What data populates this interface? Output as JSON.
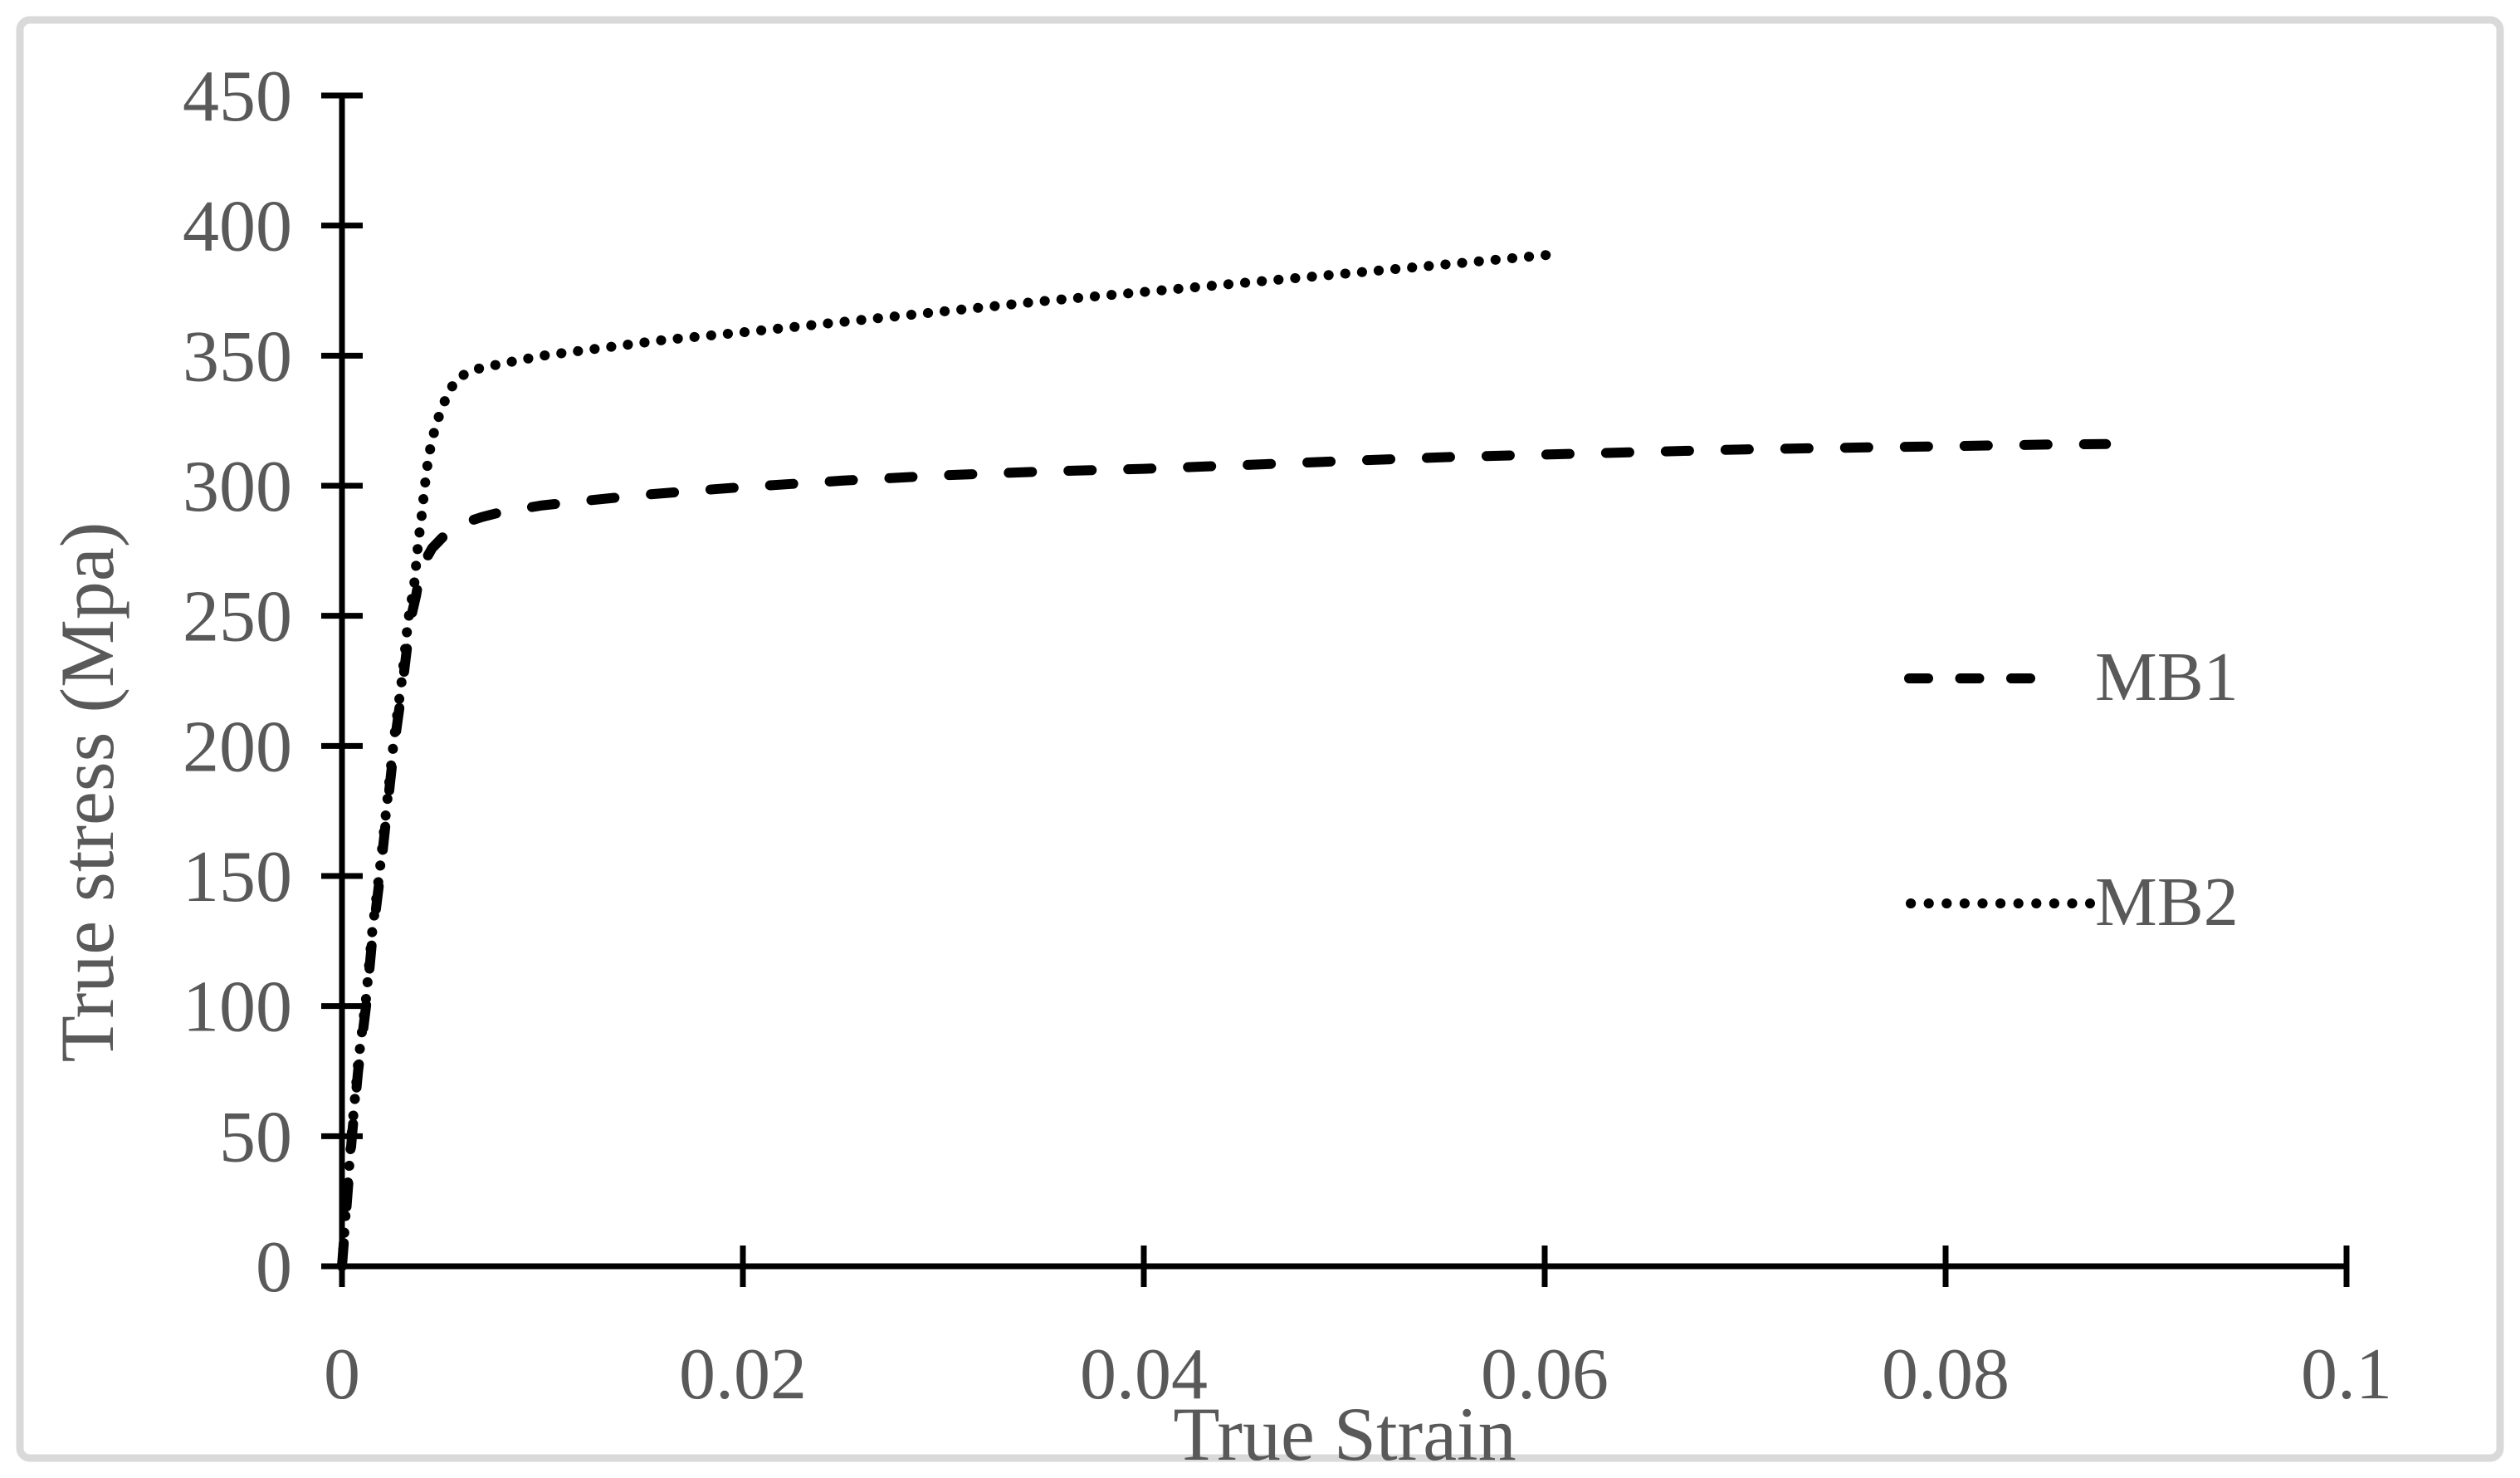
{
  "figure": {
    "background_color": "#ffffff",
    "border_color": "#d9d9d9",
    "axis_color": "#000000",
    "label_color": "#595959",
    "series_color": "#000000"
  },
  "chart_data": {
    "type": "line",
    "title": "",
    "xlabel": "True Strain",
    "ylabel": "True stress (Mpa)",
    "xlim": [
      0,
      0.1
    ],
    "ylim": [
      0,
      450
    ],
    "grid": false,
    "legend_position": "right-middle",
    "x_ticks": [
      0,
      0.02,
      0.04,
      0.06,
      0.08,
      0.1
    ],
    "x_tick_labels": [
      "0",
      "0.02",
      "0.04",
      "0.06",
      "0.08",
      "0.1"
    ],
    "y_ticks": [
      0,
      50,
      100,
      150,
      200,
      250,
      300,
      350,
      400,
      450
    ],
    "y_tick_labels": [
      "0",
      "50",
      "100",
      "150",
      "200",
      "250",
      "300",
      "350",
      "400",
      "450"
    ],
    "series": [
      {
        "name": "MB1",
        "style": "dashed",
        "color": "#000000",
        "points": [
          [
            0,
            0
          ],
          [
            0.0002,
            20
          ],
          [
            0.0005,
            50
          ],
          [
            0.0008,
            75
          ],
          [
            0.0012,
            100
          ],
          [
            0.0015,
            125
          ],
          [
            0.0019,
            150
          ],
          [
            0.0022,
            172
          ],
          [
            0.0026,
            200
          ],
          [
            0.003,
            222
          ],
          [
            0.0034,
            248
          ],
          [
            0.0037,
            258
          ],
          [
            0.0039,
            267
          ],
          [
            0.0042,
            272
          ],
          [
            0.0045,
            276
          ],
          [
            0.005,
            280
          ],
          [
            0.0054,
            283
          ],
          [
            0.006,
            285.5
          ],
          [
            0.007,
            288
          ],
          [
            0.008,
            290
          ],
          [
            0.01,
            292.5
          ],
          [
            0.0125,
            294.5
          ],
          [
            0.015,
            296.5
          ],
          [
            0.0175,
            298
          ],
          [
            0.02,
            299.5
          ],
          [
            0.025,
            302
          ],
          [
            0.03,
            304
          ],
          [
            0.035,
            305.5
          ],
          [
            0.04,
            306.5
          ],
          [
            0.045,
            308
          ],
          [
            0.05,
            309.5
          ],
          [
            0.055,
            311
          ],
          [
            0.06,
            312
          ],
          [
            0.065,
            313
          ],
          [
            0.07,
            314
          ],
          [
            0.075,
            314.6
          ],
          [
            0.08,
            315.2
          ],
          [
            0.085,
            315.8
          ],
          [
            0.088,
            316
          ]
        ]
      },
      {
        "name": "MB2",
        "style": "dotted",
        "color": "#000000",
        "points": [
          [
            0,
            0
          ],
          [
            0.0002,
            22
          ],
          [
            0.0005,
            52
          ],
          [
            0.0008,
            78
          ],
          [
            0.0012,
            103
          ],
          [
            0.0015,
            128
          ],
          [
            0.0019,
            153
          ],
          [
            0.0022,
            175
          ],
          [
            0.0026,
            203
          ],
          [
            0.003,
            226
          ],
          [
            0.0033,
            248
          ],
          [
            0.0036,
            262
          ],
          [
            0.0038,
            278
          ],
          [
            0.004,
            290
          ],
          [
            0.0041,
            298
          ],
          [
            0.0043,
            310
          ],
          [
            0.0045,
            318
          ],
          [
            0.0048,
            326
          ],
          [
            0.0052,
            334
          ],
          [
            0.0057,
            341
          ],
          [
            0.0065,
            344.5
          ],
          [
            0.008,
            347
          ],
          [
            0.01,
            350
          ],
          [
            0.013,
            353
          ],
          [
            0.016,
            356
          ],
          [
            0.02,
            359
          ],
          [
            0.025,
            363
          ],
          [
            0.03,
            367
          ],
          [
            0.035,
            371
          ],
          [
            0.04,
            374.5
          ],
          [
            0.045,
            378
          ],
          [
            0.05,
            381.5
          ],
          [
            0.055,
            385
          ],
          [
            0.0605,
            389
          ]
        ]
      }
    ]
  }
}
